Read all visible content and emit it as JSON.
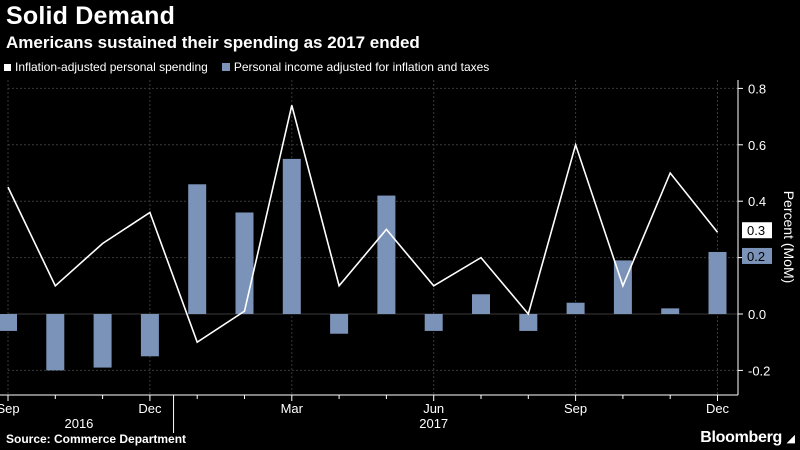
{
  "title": "Solid Demand",
  "subtitle": "Americans sustained their spending as 2017 ended",
  "source": "Source: Commerce Department",
  "brand": "Bloomberg",
  "colors": {
    "background": "#000000",
    "line": "#ffffff",
    "bar": "#7b93b8",
    "grid": "#3a3a3a"
  },
  "chart_data": {
    "type": "bar",
    "title": "Solid Demand",
    "ylabel": "Percent (MoM)",
    "ylim": [
      -0.3,
      0.8
    ],
    "grid": true,
    "legend_position": "top-left",
    "categories": [
      "Sep 2016",
      "Oct 2016",
      "Nov 2016",
      "Dec 2016",
      "Jan 2017",
      "Feb 2017",
      "Mar 2017",
      "Apr 2017",
      "May 2017",
      "Jun 2017",
      "Jul 2017",
      "Aug 2017",
      "Sep 2017",
      "Oct 2017",
      "Nov 2017",
      "Dec 2017"
    ],
    "x_tick_labels": [
      {
        "label": "Sep",
        "index": 0
      },
      {
        "label": "Dec",
        "index": 3
      },
      {
        "label": "Mar",
        "index": 6
      },
      {
        "label": "Jun",
        "index": 9
      },
      {
        "label": "Sep",
        "index": 12
      },
      {
        "label": "Dec",
        "index": 15
      }
    ],
    "year_labels": [
      {
        "label": "2016",
        "index": 1.5
      },
      {
        "label": "2017",
        "index": 9
      }
    ],
    "y_ticks": [
      0.8,
      0.6,
      0.4,
      0.2,
      0.0,
      -0.2
    ],
    "y_tick_labels": [
      "0.8",
      "0.6",
      "0.4",
      "0.2",
      "0.0",
      "-0.2"
    ],
    "series": [
      {
        "name": "Inflation-adjusted personal spending",
        "kind": "line",
        "values": [
          0.45,
          0.1,
          0.25,
          0.36,
          -0.1,
          0.01,
          0.74,
          0.1,
          0.3,
          0.1,
          0.2,
          0.0,
          0.6,
          0.1,
          0.5,
          0.29
        ],
        "last_value_label": "0.3"
      },
      {
        "name": "Personal income adjusted for inflation and taxes",
        "kind": "bar",
        "values": [
          -0.06,
          -0.2,
          -0.19,
          -0.15,
          0.46,
          0.36,
          0.55,
          -0.07,
          0.42,
          -0.06,
          0.07,
          -0.06,
          0.04,
          0.19,
          0.02,
          0.22
        ],
        "last_value_label": "0.2"
      }
    ]
  }
}
